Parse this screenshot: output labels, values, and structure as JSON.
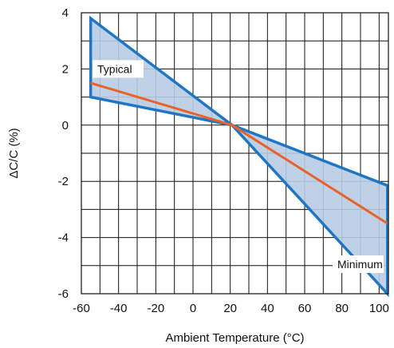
{
  "chart_data": {
    "type": "area",
    "title": "",
    "xlabel": "Ambient Temperature (°C)",
    "ylabel": "ΔC/C (%)",
    "xlim": [
      -60,
      105
    ],
    "ylim": [
      -6,
      4
    ],
    "x_ticks": [
      -60,
      -40,
      -20,
      0,
      20,
      40,
      60,
      80,
      100
    ],
    "x_tick_labels": [
      "-60",
      "-40",
      "-20",
      "0",
      "20",
      "40",
      "60",
      "80",
      "100"
    ],
    "y_ticks": [
      -6,
      -4,
      -2,
      0,
      2,
      4
    ],
    "y_tick_labels": [
      "-6",
      "-4",
      "-2",
      "0",
      "2",
      "4"
    ],
    "x_minor_step": 10,
    "y_minor_step": 1,
    "grid": true,
    "band": {
      "fill_color": "#b8cce4",
      "edge_color": "#1f77c4",
      "polygon": [
        {
          "x": -55,
          "y": 3.8
        },
        {
          "x": 21,
          "y": 0
        },
        {
          "x": 104.5,
          "y": -2.15
        },
        {
          "x": 104.5,
          "y": -6
        },
        {
          "x": 21,
          "y": 0
        },
        {
          "x": -55,
          "y": 1.0
        }
      ]
    },
    "series": [
      {
        "name": "Typical",
        "color": "#e8622a",
        "x": [
          -55,
          21,
          104.5
        ],
        "y": [
          1.5,
          0,
          -3.5
        ]
      }
    ],
    "annotations": [
      {
        "text": "Typical",
        "x": -54,
        "y": 2.0
      },
      {
        "text": "Minimum",
        "x": 75,
        "y": -4.95
      }
    ]
  }
}
